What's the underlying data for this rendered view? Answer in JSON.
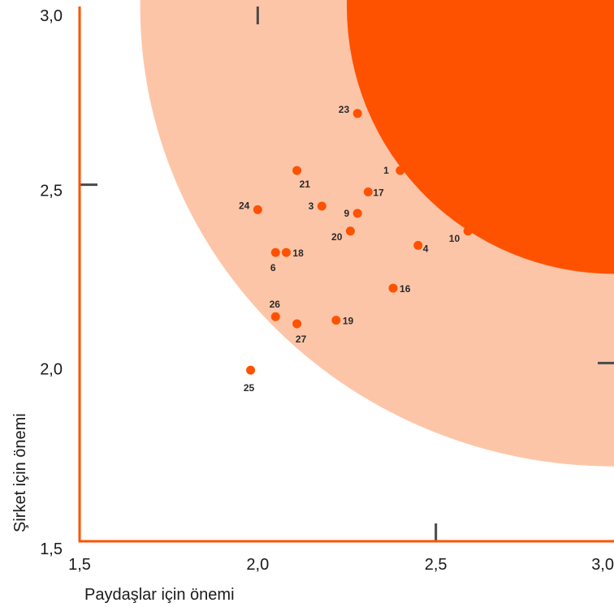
{
  "chart_data": {
    "type": "scatter",
    "xlabel": "Paydaşlar için önemi",
    "ylabel": "Şirket için önemi",
    "xlim": [
      1.5,
      3.0
    ],
    "ylim": [
      1.5,
      3.0
    ],
    "x_ticks": [
      "1,5",
      "2,0",
      "2,5",
      "3,0"
    ],
    "y_ticks": [
      "1,5",
      "2,0",
      "2,5",
      "3,0"
    ],
    "bands": [
      {
        "name": "outer",
        "center": [
          3.0,
          3.0
        ],
        "radius_x": 1.33,
        "radius_y": 1.29,
        "color": "#fdc5a8"
      },
      {
        "name": "inner",
        "center": [
          3.0,
          3.0
        ],
        "radius_x": 0.75,
        "radius_y": 0.75,
        "color": "#fe5200"
      }
    ],
    "points": [
      {
        "label": "1",
        "x": 2.4,
        "y": 2.54
      },
      {
        "label": "3",
        "x": 2.18,
        "y": 2.44
      },
      {
        "label": "4",
        "x": 2.45,
        "y": 2.33
      },
      {
        "label": "6",
        "x": 2.05,
        "y": 2.31
      },
      {
        "label": "9",
        "x": 2.28,
        "y": 2.42
      },
      {
        "label": "10",
        "x": 2.59,
        "y": 2.37
      },
      {
        "label": "16",
        "x": 2.38,
        "y": 2.21
      },
      {
        "label": "17",
        "x": 2.31,
        "y": 2.48
      },
      {
        "label": "18",
        "x": 2.08,
        "y": 2.31
      },
      {
        "label": "19",
        "x": 2.22,
        "y": 2.12
      },
      {
        "label": "20",
        "x": 2.26,
        "y": 2.37
      },
      {
        "label": "21",
        "x": 2.11,
        "y": 2.54
      },
      {
        "label": "23",
        "x": 2.28,
        "y": 2.7
      },
      {
        "label": "24",
        "x": 2.0,
        "y": 2.43
      },
      {
        "label": "25",
        "x": 1.98,
        "y": 1.98
      },
      {
        "label": "26",
        "x": 2.05,
        "y": 2.13
      },
      {
        "label": "27",
        "x": 2.11,
        "y": 2.11
      }
    ],
    "point_color": "#fe5200",
    "axis_color": "#fe5200"
  }
}
